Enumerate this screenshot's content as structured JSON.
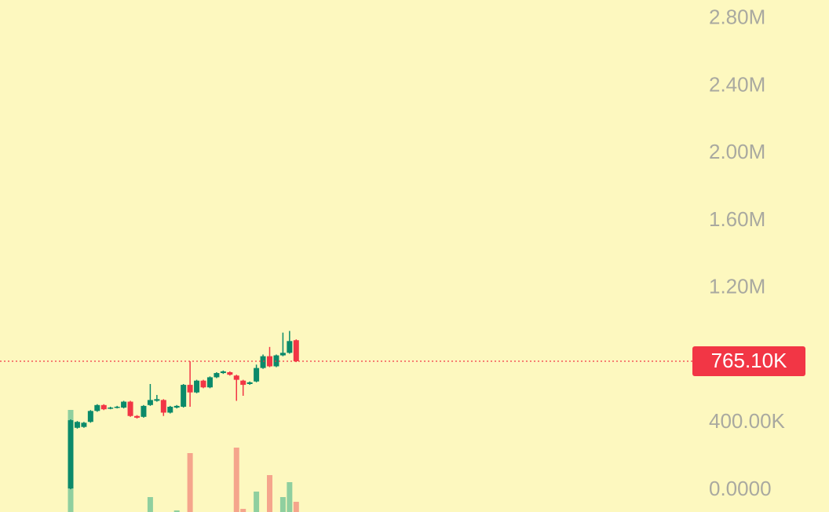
{
  "chart_data": {
    "type": "candlestick",
    "open": [
      10000,
      370000,
      375000,
      405000,
      470000,
      505000,
      485000,
      490000,
      490000,
      525000,
      440000,
      435000,
      505000,
      530000,
      535000,
      460000,
      490000,
      495000,
      625000,
      580000,
      650000,
      610000,
      670000,
      695000,
      700000,
      680000,
      650000,
      630000,
      645000,
      725000,
      795000,
      735000,
      800000,
      815000,
      890000
    ],
    "high": [
      420000,
      410000,
      405000,
      475000,
      510000,
      510000,
      495000,
      500000,
      530000,
      530000,
      445000,
      505000,
      630000,
      565000,
      540000,
      500000,
      505000,
      630000,
      765000,
      655000,
      655000,
      675000,
      700000,
      710000,
      705000,
      685000,
      655000,
      645000,
      745000,
      805000,
      850000,
      805000,
      935000,
      945000,
      895000
    ],
    "low": [
      5000,
      365000,
      370000,
      400000,
      465000,
      475000,
      480000,
      485000,
      485000,
      435000,
      425000,
      430000,
      500000,
      525000,
      440000,
      455000,
      485000,
      490000,
      495000,
      575000,
      605000,
      605000,
      665000,
      690000,
      680000,
      530000,
      560000,
      625000,
      640000,
      720000,
      730000,
      730000,
      795000,
      810000,
      760000
    ],
    "close": [
      415000,
      405000,
      400000,
      470000,
      505000,
      480000,
      490000,
      495000,
      525000,
      440000,
      430000,
      500000,
      535000,
      540000,
      460000,
      495000,
      500000,
      625000,
      580000,
      650000,
      610000,
      670000,
      695000,
      705000,
      685000,
      655000,
      625000,
      640000,
      725000,
      795000,
      735000,
      800000,
      815000,
      885000,
      765100
    ],
    "volume": [
      130,
      null,
      null,
      null,
      null,
      null,
      null,
      null,
      null,
      null,
      null,
      null,
      19,
      null,
      null,
      null,
      2,
      null,
      75,
      null,
      null,
      null,
      null,
      null,
      null,
      82,
      4,
      null,
      26,
      null,
      47,
      null,
      19,
      38,
      13
    ],
    "volume_ylim": [
      0,
      140
    ],
    "up_color": "#0b8a6a",
    "down_color": "#f23645",
    "volume_up_color": "#8fcf9f",
    "volume_down_color": "#f5a58c",
    "ylim": [
      -130000,
      2910000
    ],
    "yticks": [
      {
        "value": 0,
        "label": "0.0000"
      },
      {
        "value": 400000,
        "label": "400.00K"
      },
      {
        "value": 1200000,
        "label": "1.20M"
      },
      {
        "value": 1600000,
        "label": "1.60M"
      },
      {
        "value": 2000000,
        "label": "2.00M"
      },
      {
        "value": 2400000,
        "label": "2.40M"
      },
      {
        "value": 2800000,
        "label": "2.80M"
      }
    ],
    "last_price": 765100,
    "last_price_label": "765.10K"
  }
}
